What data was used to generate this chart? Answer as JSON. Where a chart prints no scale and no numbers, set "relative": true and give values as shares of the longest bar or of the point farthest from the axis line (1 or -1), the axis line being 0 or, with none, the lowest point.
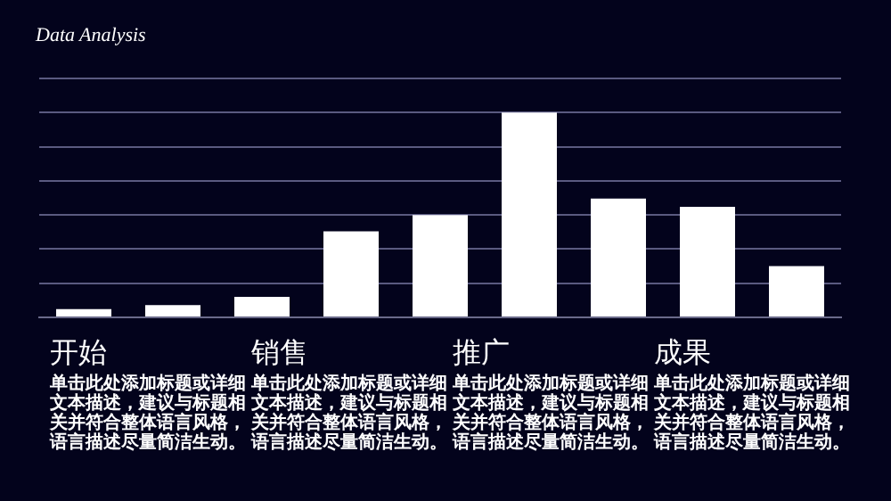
{
  "chart_data": {
    "type": "bar",
    "title": "Data Analysis",
    "relative": true,
    "grid": true,
    "categories": [
      null,
      null,
      null,
      null,
      null,
      null,
      null,
      null,
      null
    ],
    "values": [
      0.04,
      0.06,
      0.1,
      0.42,
      0.5,
      1,
      0.58,
      0.54,
      0.25
    ],
    "color": "#ffffff",
    "annotations": [
      "开始",
      "单击此处添加标题或详细文本描述，建议与标题相关并符合整体语言风格，语言描述尽量简洁生动。",
      "销售",
      "单击此处添加标题或详细文本描述，建议与标题相关并符合整体语言风格，语言描述尽量简洁生动。",
      "推广",
      "单击此处添加标题或详细文本描述，建议与标题相关并符合整体语言风格，语言描述尽量简洁生动。",
      "成果",
      "单击此处添加标题或详细文本描述，建议与标题相关并符合整体语言风格，语言描述尽量简洁生动。"
    ]
  }
}
